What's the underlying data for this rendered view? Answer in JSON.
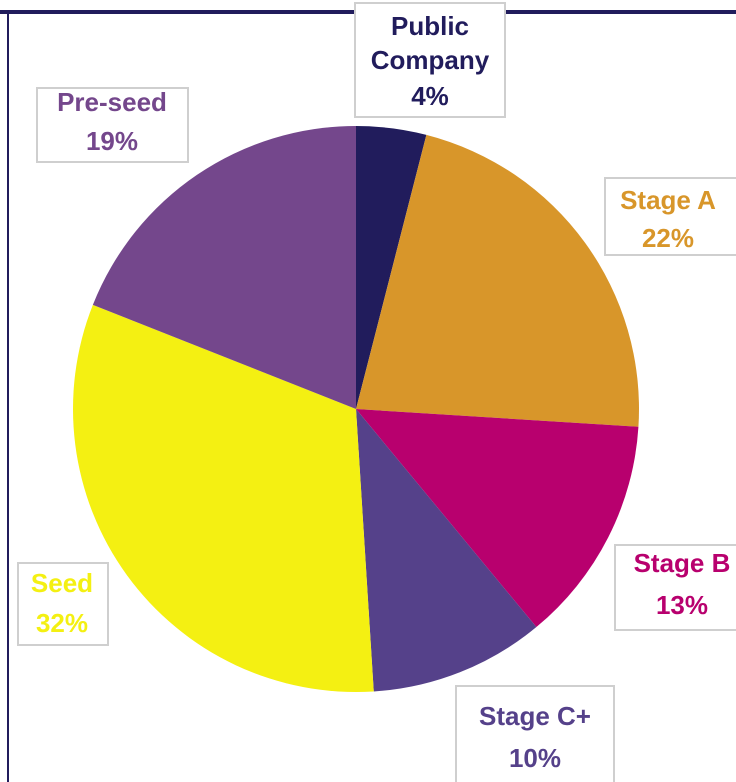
{
  "chart_data": {
    "type": "pie",
    "categories": [
      "Public Company",
      "Stage A",
      "Stage B",
      "Stage C+",
      "Seed",
      "Pre-seed"
    ],
    "values": [
      4,
      22,
      13,
      10,
      32,
      19
    ],
    "value_labels": [
      "4%",
      "22%",
      "13%",
      "10%",
      "32%",
      "19%"
    ],
    "colors": [
      "#211c5c",
      "#d8962a",
      "#b8006e",
      "#55418a",
      "#f4f012",
      "#74478c"
    ]
  }
}
